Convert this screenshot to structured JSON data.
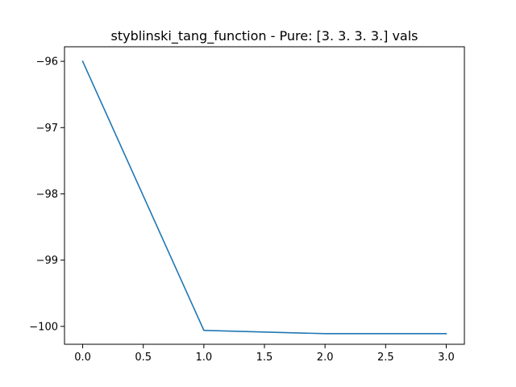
{
  "chart_data": {
    "type": "line",
    "title": "styblinski_tang_function - Pure: [3. 3. 3. 3.] vals",
    "xlabel": "",
    "ylabel": "",
    "xlim": [
      -0.15,
      3.15
    ],
    "ylim": [
      -100.27,
      -95.78
    ],
    "x_ticks": [
      0.0,
      0.5,
      1.0,
      1.5,
      2.0,
      2.5,
      3.0
    ],
    "x_tick_labels": [
      "0.0",
      "0.5",
      "1.0",
      "1.5",
      "2.0",
      "2.5",
      "3.0"
    ],
    "y_ticks": [
      -96,
      -97,
      -98,
      -99,
      -100
    ],
    "y_tick_labels": [
      "−96",
      "−97",
      "−98",
      "−99",
      "−100"
    ],
    "grid": false,
    "series": [
      {
        "color": "#1f77b4",
        "x": [
          0,
          1,
          2,
          3
        ],
        "y": [
          -96.0,
          -100.06,
          -100.11,
          -100.11
        ]
      }
    ]
  }
}
